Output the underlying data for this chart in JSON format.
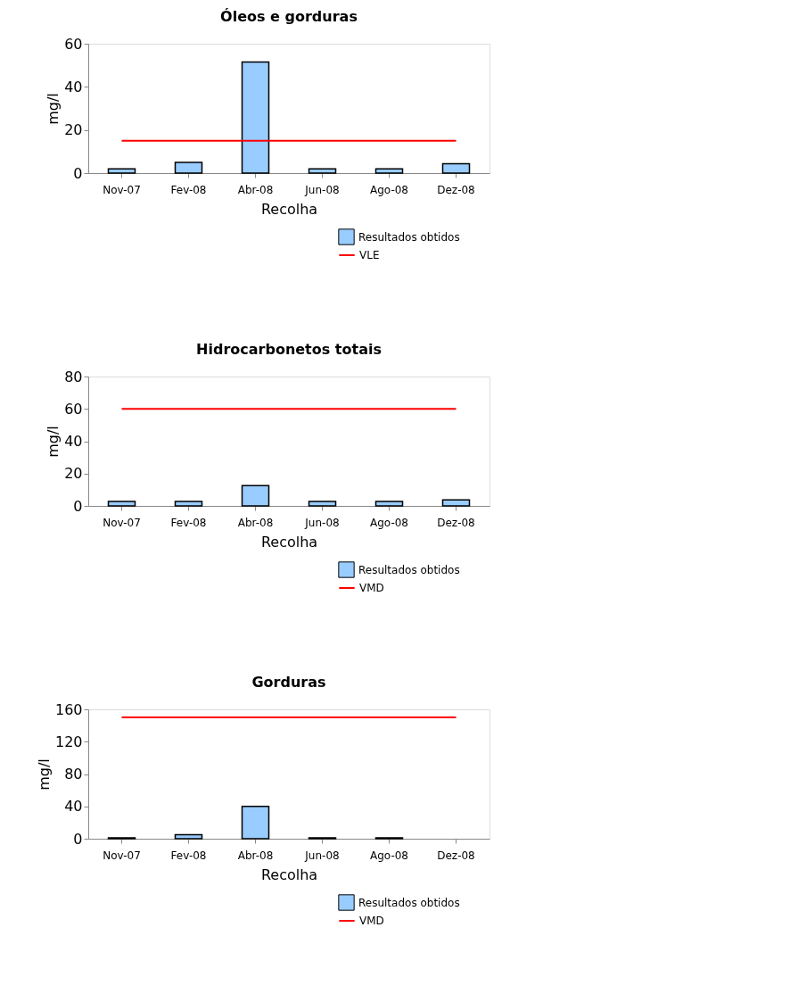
{
  "chart_data": [
    {
      "type": "bar",
      "title": "Óleos e gorduras",
      "xlabel": "Recolha",
      "ylabel": "mg/l",
      "categories": [
        "Nov-07",
        "Fev-08",
        "Abr-08",
        "Jun-08",
        "Ago-08",
        "Dez-08"
      ],
      "ylim": [
        0,
        60
      ],
      "yticks": [
        0,
        20,
        40,
        60
      ],
      "grid": false,
      "legend": "bottom right",
      "series": [
        {
          "name": "Resultados obtidos",
          "color": "#99ccff",
          "values": [
            2,
            5,
            51.5,
            2,
            2,
            4.3
          ]
        },
        {
          "name": "VLE",
          "type": "line",
          "color": "#ff0000",
          "values": [
            15,
            15,
            15,
            15,
            15,
            15
          ]
        }
      ]
    },
    {
      "type": "bar",
      "title": "Hidrocarbonetos totais",
      "xlabel": "Recolha",
      "ylabel": "mg/l",
      "categories": [
        "Nov-07",
        "Fev-08",
        "Abr-08",
        "Jun-08",
        "Ago-08",
        "Dez-08"
      ],
      "ylim": [
        0,
        80
      ],
      "yticks": [
        0,
        20,
        40,
        60,
        80
      ],
      "grid": false,
      "legend": "bottom right",
      "series": [
        {
          "name": "Resultados obtidos",
          "color": "#99ccff",
          "values": [
            2.8,
            2.8,
            12.5,
            2.8,
            2.8,
            3.7
          ]
        },
        {
          "name": "VMD",
          "type": "line",
          "color": "#ff0000",
          "values": [
            60,
            60,
            60,
            60,
            60,
            60
          ]
        }
      ]
    },
    {
      "type": "bar",
      "title": "Gorduras",
      "xlabel": "Recolha",
      "ylabel": "mg/l",
      "categories": [
        "Nov-07",
        "Fev-08",
        "Abr-08",
        "Jun-08",
        "Ago-08",
        "Dez-08"
      ],
      "ylim": [
        0,
        160
      ],
      "yticks": [
        0,
        40,
        80,
        120,
        160
      ],
      "grid": false,
      "legend": "bottom right",
      "series": [
        {
          "name": "Resultados obtidos",
          "color": "#99ccff",
          "values": [
            1,
            5,
            40,
            1,
            1,
            null
          ]
        },
        {
          "name": "VMD",
          "type": "line",
          "color": "#ff0000",
          "values": [
            150,
            150,
            150,
            150,
            150,
            150
          ]
        }
      ]
    }
  ]
}
